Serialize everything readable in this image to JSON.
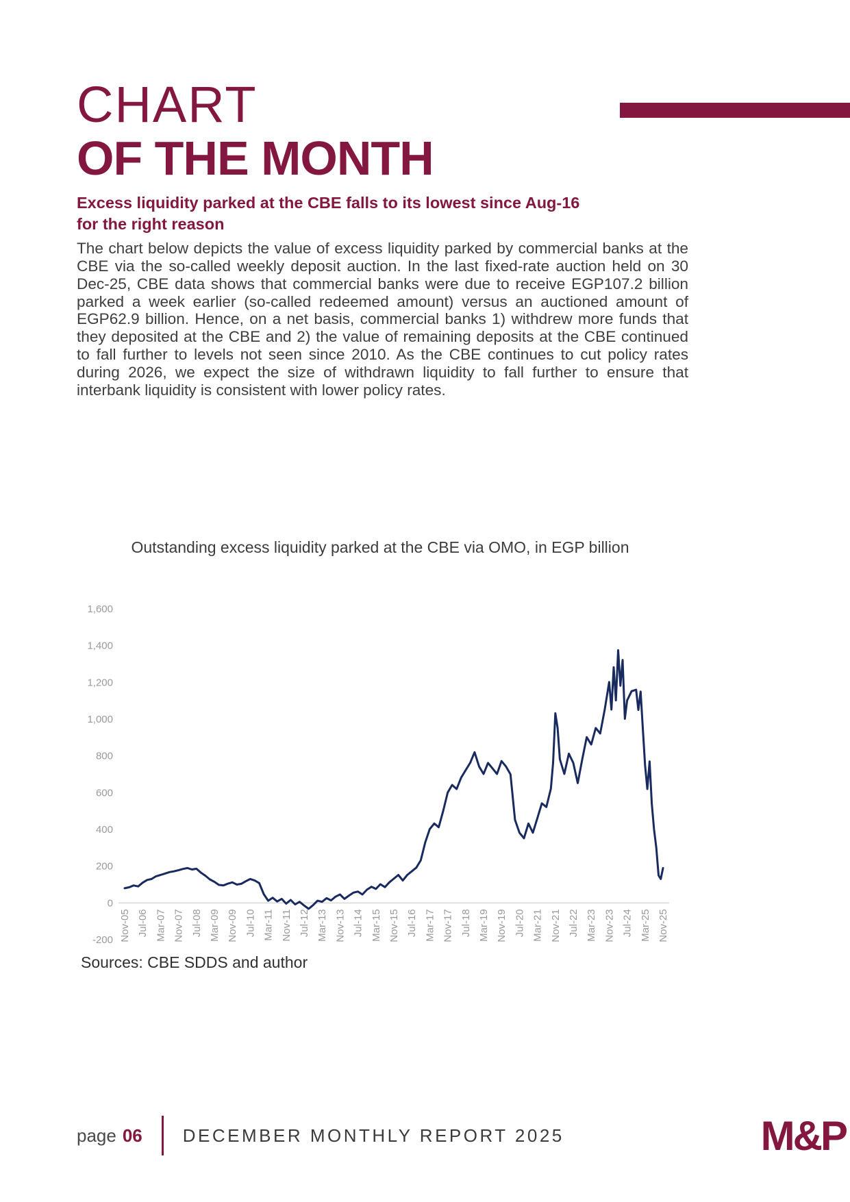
{
  "colors": {
    "brand_maroon": "#84173f",
    "chart_line_navy": "#192a5e",
    "body_text": "#3e3e3e",
    "axis_text_gray": "#9a9a9a",
    "axis_line_gray": "#d9d9d9"
  },
  "header": {
    "title_line1": "CHART",
    "title_line2": "OF THE MONTH",
    "subtitle": "Excess liquidity parked at the CBE falls to its lowest since Aug-16\nfor the right reason"
  },
  "body": {
    "paragraph": "The chart below depicts the value of excess liquidity parked by commercial banks at the CBE via the so-called weekly deposit auction. In the last fixed-rate auction held on 30 Dec-25, CBE data shows that commercial banks were due to receive EGP107.2 billion parked a week earlier (so-called redeemed amount) versus an auctioned amount of EGP62.9 billion. Hence, on a net basis, commercial banks 1) withdrew more funds that they deposited at the CBE and 2) the value of remaining deposits at the CBE continued to fall further to levels not seen since 2010. As the CBE continues to cut policy rates during 2026, we expect the size of withdrawn liquidity to fall further to ensure that interbank liquidity is consistent with lower policy rates.",
    "source_note": "Sources: CBE SDDS and author"
  },
  "chart_data": {
    "type": "line",
    "title": "Outstanding excess liquidity parked at the CBE via OMO, in EGP billion",
    "xlabel": "",
    "ylabel": "EGP billion",
    "ylim": [
      -200,
      1600
    ],
    "grid": false,
    "legend_position": "none",
    "y_ticks": [
      "1,600",
      "1,400",
      "1,200",
      "1,000",
      "800",
      "600",
      "400",
      "200",
      "0",
      "-200"
    ],
    "x_tick_labels": [
      "Nov-05",
      "Jul-06",
      "Mar-07",
      "Nov-07",
      "Jul-08",
      "Mar-09",
      "Nov-09",
      "Jul-10",
      "Mar-11",
      "Nov-11",
      "Jul-12",
      "Mar-13",
      "Nov-13",
      "Jul-14",
      "Mar-15",
      "Nov-15",
      "Jul-16",
      "Mar-17",
      "Nov-17",
      "Jul-18",
      "Mar-19",
      "Nov-19",
      "Jul-20",
      "Mar-21",
      "Nov-21",
      "Jul-22",
      "Mar-23",
      "Nov-23",
      "Jul-24",
      "Mar-25",
      "Nov-25"
    ],
    "x_tick_step_months": 8,
    "x_months_total": 240,
    "series": [
      {
        "name": "Outstanding excess liquidity parked at the CBE via OMO (EGP bn)",
        "x": [
          0,
          2,
          4,
          6,
          8,
          10,
          12,
          14,
          16,
          18,
          20,
          22,
          24,
          26,
          28,
          30,
          32,
          34,
          36,
          38,
          40,
          42,
          44,
          46,
          48,
          50,
          52,
          54,
          56,
          58,
          60,
          62,
          64,
          66,
          68,
          70,
          72,
          74,
          76,
          78,
          80,
          82,
          84,
          86,
          88,
          90,
          92,
          94,
          96,
          98,
          100,
          102,
          104,
          106,
          108,
          110,
          112,
          114,
          116,
          118,
          120,
          122,
          124,
          126,
          128,
          130,
          132,
          134,
          136,
          138,
          140,
          142,
          144,
          146,
          148,
          150,
          152,
          154,
          156,
          158,
          160,
          162,
          164,
          166,
          168,
          170,
          172,
          174,
          176,
          178,
          180,
          182,
          184,
          186,
          188,
          190,
          191,
          192,
          193,
          194,
          196,
          198,
          200,
          202,
          204,
          206,
          208,
          210,
          212,
          214,
          216,
          217,
          218,
          219,
          220,
          221,
          222,
          223,
          224,
          226,
          228,
          229,
          230,
          231,
          232,
          233,
          234,
          235,
          236,
          237,
          238,
          239,
          240
        ],
        "values": [
          80,
          85,
          95,
          90,
          110,
          125,
          130,
          145,
          152,
          160,
          168,
          172,
          178,
          185,
          190,
          182,
          186,
          165,
          148,
          128,
          115,
          98,
          95,
          105,
          112,
          100,
          104,
          118,
          130,
          122,
          108,
          48,
          12,
          28,
          8,
          22,
          -4,
          16,
          -8,
          6,
          -14,
          -32,
          -12,
          12,
          6,
          26,
          14,
          34,
          46,
          22,
          40,
          56,
          62,
          46,
          72,
          88,
          76,
          102,
          86,
          112,
          132,
          152,
          122,
          152,
          172,
          192,
          232,
          330,
          402,
          432,
          412,
          500,
          600,
          642,
          620,
          682,
          722,
          762,
          820,
          742,
          702,
          762,
          732,
          702,
          772,
          742,
          700,
          452,
          382,
          352,
          432,
          382,
          462,
          542,
          522,
          622,
          762,
          1032,
          952,
          782,
          702,
          812,
          762,
          652,
          782,
          902,
          862,
          952,
          922,
          1052,
          1202,
          1052,
          1282,
          1102,
          1375,
          1182,
          1322,
          1002,
          1102,
          1152,
          1160,
          1050,
          1150,
          950,
          750,
          620,
          770,
          540,
          400,
          300,
          150,
          130,
          190
        ]
      }
    ]
  },
  "footer": {
    "page_label": "page",
    "page_number": "06",
    "report_title": "DECEMBER MONTHLY REPORT 2025",
    "logo": "M&P"
  }
}
